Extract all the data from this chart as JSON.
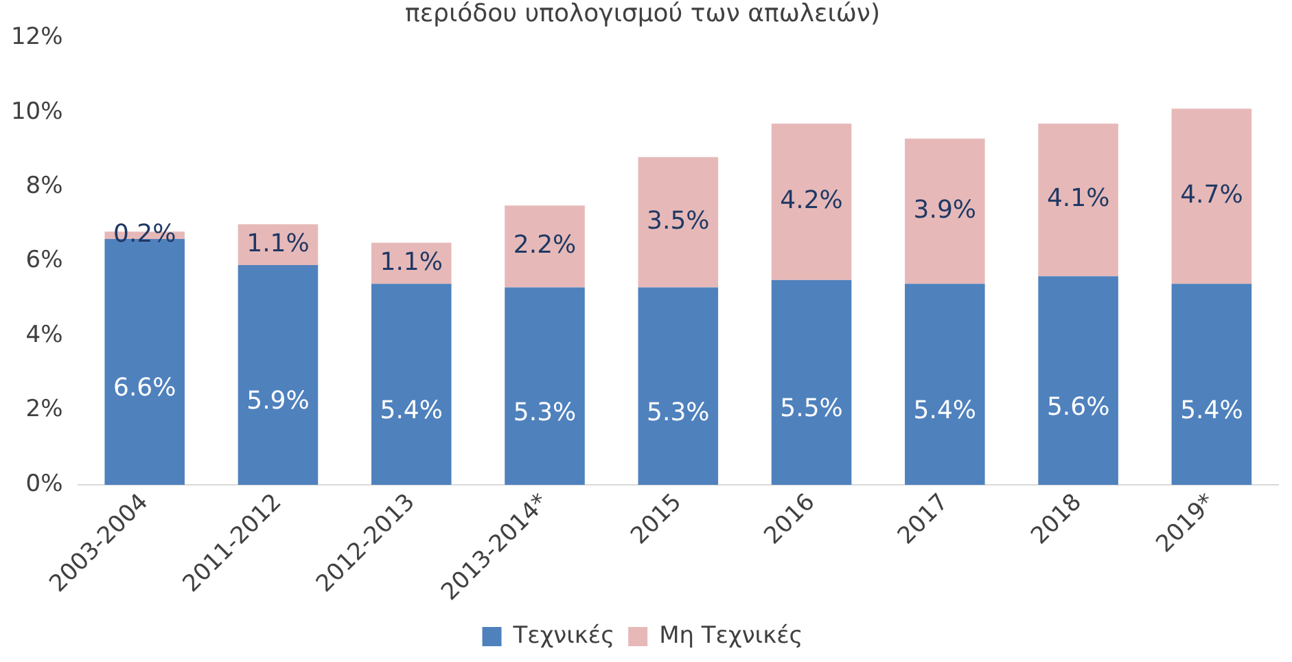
{
  "chart_data": {
    "type": "bar",
    "title": "περιόδου υπολογισμού των απωλειών)",
    "stacked": true,
    "legend": "bottom",
    "grid": false,
    "categories": [
      "2003-2004",
      "2011-2012",
      "2012-2013",
      "2013-2014*",
      "2015",
      "2016",
      "2017",
      "2018",
      "2019*"
    ],
    "ylim": [
      0,
      12
    ],
    "yticks": [
      {
        "value": 0,
        "label": "0%"
      },
      {
        "value": 2,
        "label": "2%"
      },
      {
        "value": 4,
        "label": "4%"
      },
      {
        "value": 6,
        "label": "6%"
      },
      {
        "value": 8,
        "label": "8%"
      },
      {
        "value": 10,
        "label": "10%"
      },
      {
        "value": 12,
        "label": "12%"
      }
    ],
    "series": [
      {
        "name": "Τεχνικές",
        "color": "#4f81bd",
        "values": [
          6.6,
          5.9,
          5.4,
          5.3,
          5.3,
          5.5,
          5.4,
          5.6,
          5.4
        ],
        "value_labels": [
          "6.6%",
          "5.9%",
          "5.4%",
          "5.3%",
          "5.3%",
          "5.5%",
          "5.4%",
          "5.6%",
          "5.4%"
        ]
      },
      {
        "name": "Μη Τεχνικές",
        "color": "#e6b9b8",
        "values": [
          0.2,
          1.1,
          1.1,
          2.2,
          3.5,
          4.2,
          3.9,
          4.1,
          4.7
        ],
        "value_labels": [
          "0.2%",
          "1.1%",
          "1.1%",
          "2.2%",
          "3.5%",
          "4.2%",
          "3.9%",
          "4.1%",
          "4.7%"
        ]
      }
    ]
  }
}
